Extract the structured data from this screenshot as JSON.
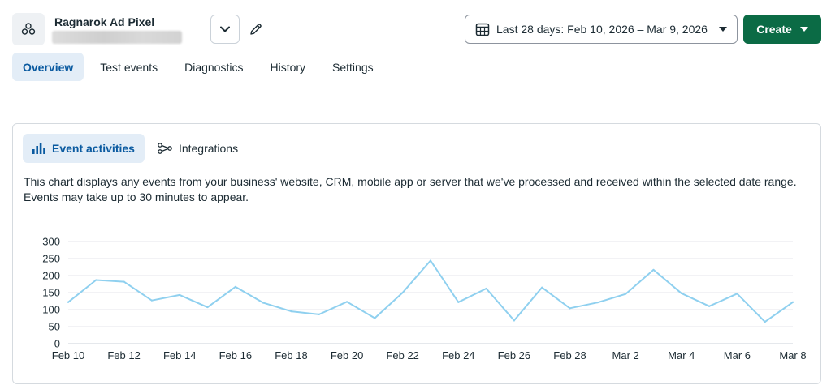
{
  "header": {
    "pixel_name": "Ragnarok Ad Pixel",
    "date_range_label": "Last 28 days: Feb 10, 2026 – Mar 9, 2026",
    "create_label": "Create"
  },
  "tabs": [
    {
      "label": "Overview",
      "active": true
    },
    {
      "label": "Test events",
      "active": false
    },
    {
      "label": "Diagnostics",
      "active": false
    },
    {
      "label": "History",
      "active": false
    },
    {
      "label": "Settings",
      "active": false
    }
  ],
  "card": {
    "subtabs": [
      {
        "label": "Event activities",
        "active": true,
        "icon": "bar-chart-icon"
      },
      {
        "label": "Integrations",
        "active": false,
        "icon": "integrations-icon"
      }
    ],
    "description": "This chart displays any events from your business' website, CRM, mobile app or server that we've processed and received within the selected date range. Events may take up to 30 minutes to appear."
  },
  "colors": {
    "accent_blue": "#0a5aa0",
    "active_tab_bg": "#e3edf7",
    "create_green": "#0b6b45",
    "line_color": "#8fd0ef",
    "grid_color": "#e4e6eb"
  },
  "chart_data": {
    "type": "line",
    "x": [
      "Feb 10",
      "Feb 11",
      "Feb 12",
      "Feb 13",
      "Feb 14",
      "Feb 15",
      "Feb 16",
      "Feb 17",
      "Feb 18",
      "Feb 19",
      "Feb 20",
      "Feb 21",
      "Feb 22",
      "Feb 23",
      "Feb 24",
      "Feb 25",
      "Feb 26",
      "Feb 27",
      "Feb 28",
      "Mar 1",
      "Mar 2",
      "Mar 3",
      "Mar 4",
      "Mar 5",
      "Mar 6",
      "Mar 7",
      "Mar 8"
    ],
    "series": [
      {
        "values": [
          122,
          187,
          182,
          127,
          143,
          107,
          167,
          120,
          95,
          86,
          123,
          75,
          150,
          244,
          122,
          162,
          68,
          165,
          104,
          121,
          146,
          217,
          148,
          110,
          147,
          64,
          122
        ]
      }
    ],
    "xticks": [
      "Feb 10",
      "Feb 12",
      "Feb 14",
      "Feb 16",
      "Feb 18",
      "Feb 20",
      "Feb 22",
      "Feb 24",
      "Feb 26",
      "Feb 28",
      "Mar 2",
      "Mar 4",
      "Mar 6",
      "Mar 8"
    ],
    "yticks": [
      0,
      50,
      100,
      150,
      200,
      250,
      300
    ],
    "ylim": [
      0,
      300
    ],
    "grid": true,
    "title": "",
    "xlabel": "",
    "ylabel": ""
  }
}
